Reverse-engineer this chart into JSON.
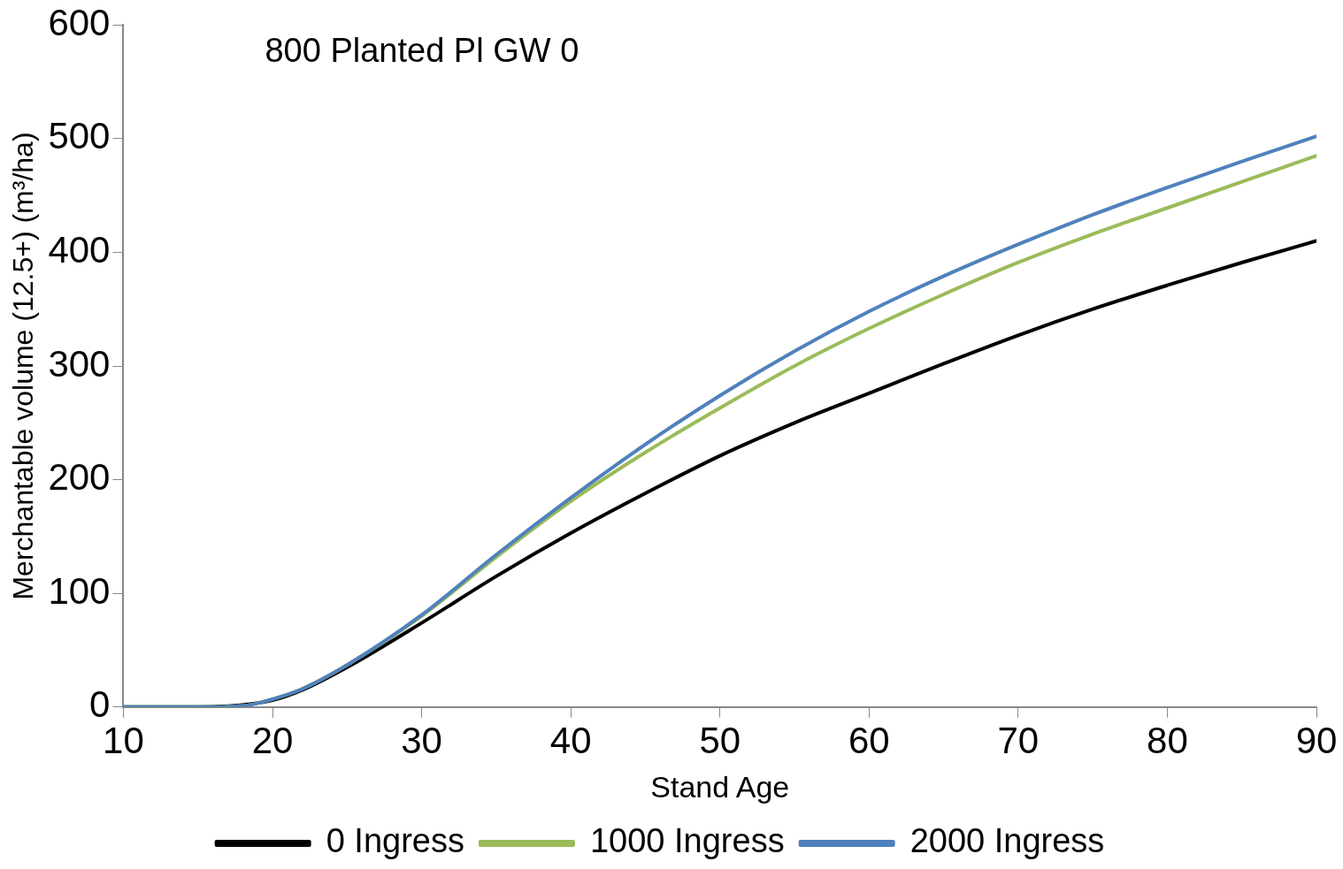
{
  "chart_data": {
    "type": "line",
    "xlabel": "Stand Age",
    "ylabel": "Merchantable volume (12.5+) (m³/ha)",
    "annotations": [
      "800 Planted Pl GW 0"
    ],
    "xlim": [
      10,
      90
    ],
    "xticks": [
      10,
      20,
      30,
      40,
      50,
      60,
      70,
      80,
      90
    ],
    "ylim": [
      0,
      600
    ],
    "yticks": [
      0,
      100,
      200,
      300,
      400,
      500,
      600
    ],
    "grid": false,
    "legend": "bottom",
    "marker": "none",
    "line_style": "solid",
    "series": [
      {
        "name": "0 Ingress",
        "color": "#000000",
        "x": [
          10,
          15,
          20,
          22,
          25,
          30,
          35,
          40,
          45,
          50,
          55,
          60,
          65,
          70,
          75,
          80,
          85,
          90
        ],
        "values": [
          0,
          0,
          6,
          15,
          35,
          74,
          115,
          153,
          188,
          221,
          250,
          276,
          302,
          327,
          350,
          371,
          391,
          410
        ]
      },
      {
        "name": "1000 Ingress",
        "color": "#9bbb59",
        "x": [
          10,
          15,
          18,
          20,
          22,
          25,
          30,
          35,
          40,
          45,
          50,
          55,
          60,
          65,
          70,
          75,
          80,
          85,
          90
        ],
        "values": [
          0,
          0,
          1,
          7,
          16,
          37,
          80,
          132,
          181,
          224,
          263,
          300,
          333,
          363,
          391,
          416,
          439,
          462,
          485
        ]
      },
      {
        "name": "2000 Ingress",
        "color": "#4f81bd",
        "x": [
          10,
          15,
          18,
          20,
          22,
          25,
          30,
          35,
          40,
          45,
          50,
          55,
          60,
          65,
          70,
          75,
          80,
          85,
          90
        ],
        "values": [
          0,
          0,
          1,
          7,
          16,
          37,
          81,
          134,
          184,
          231,
          274,
          313,
          348,
          379,
          407,
          433,
          457,
          480,
          502
        ]
      }
    ]
  }
}
